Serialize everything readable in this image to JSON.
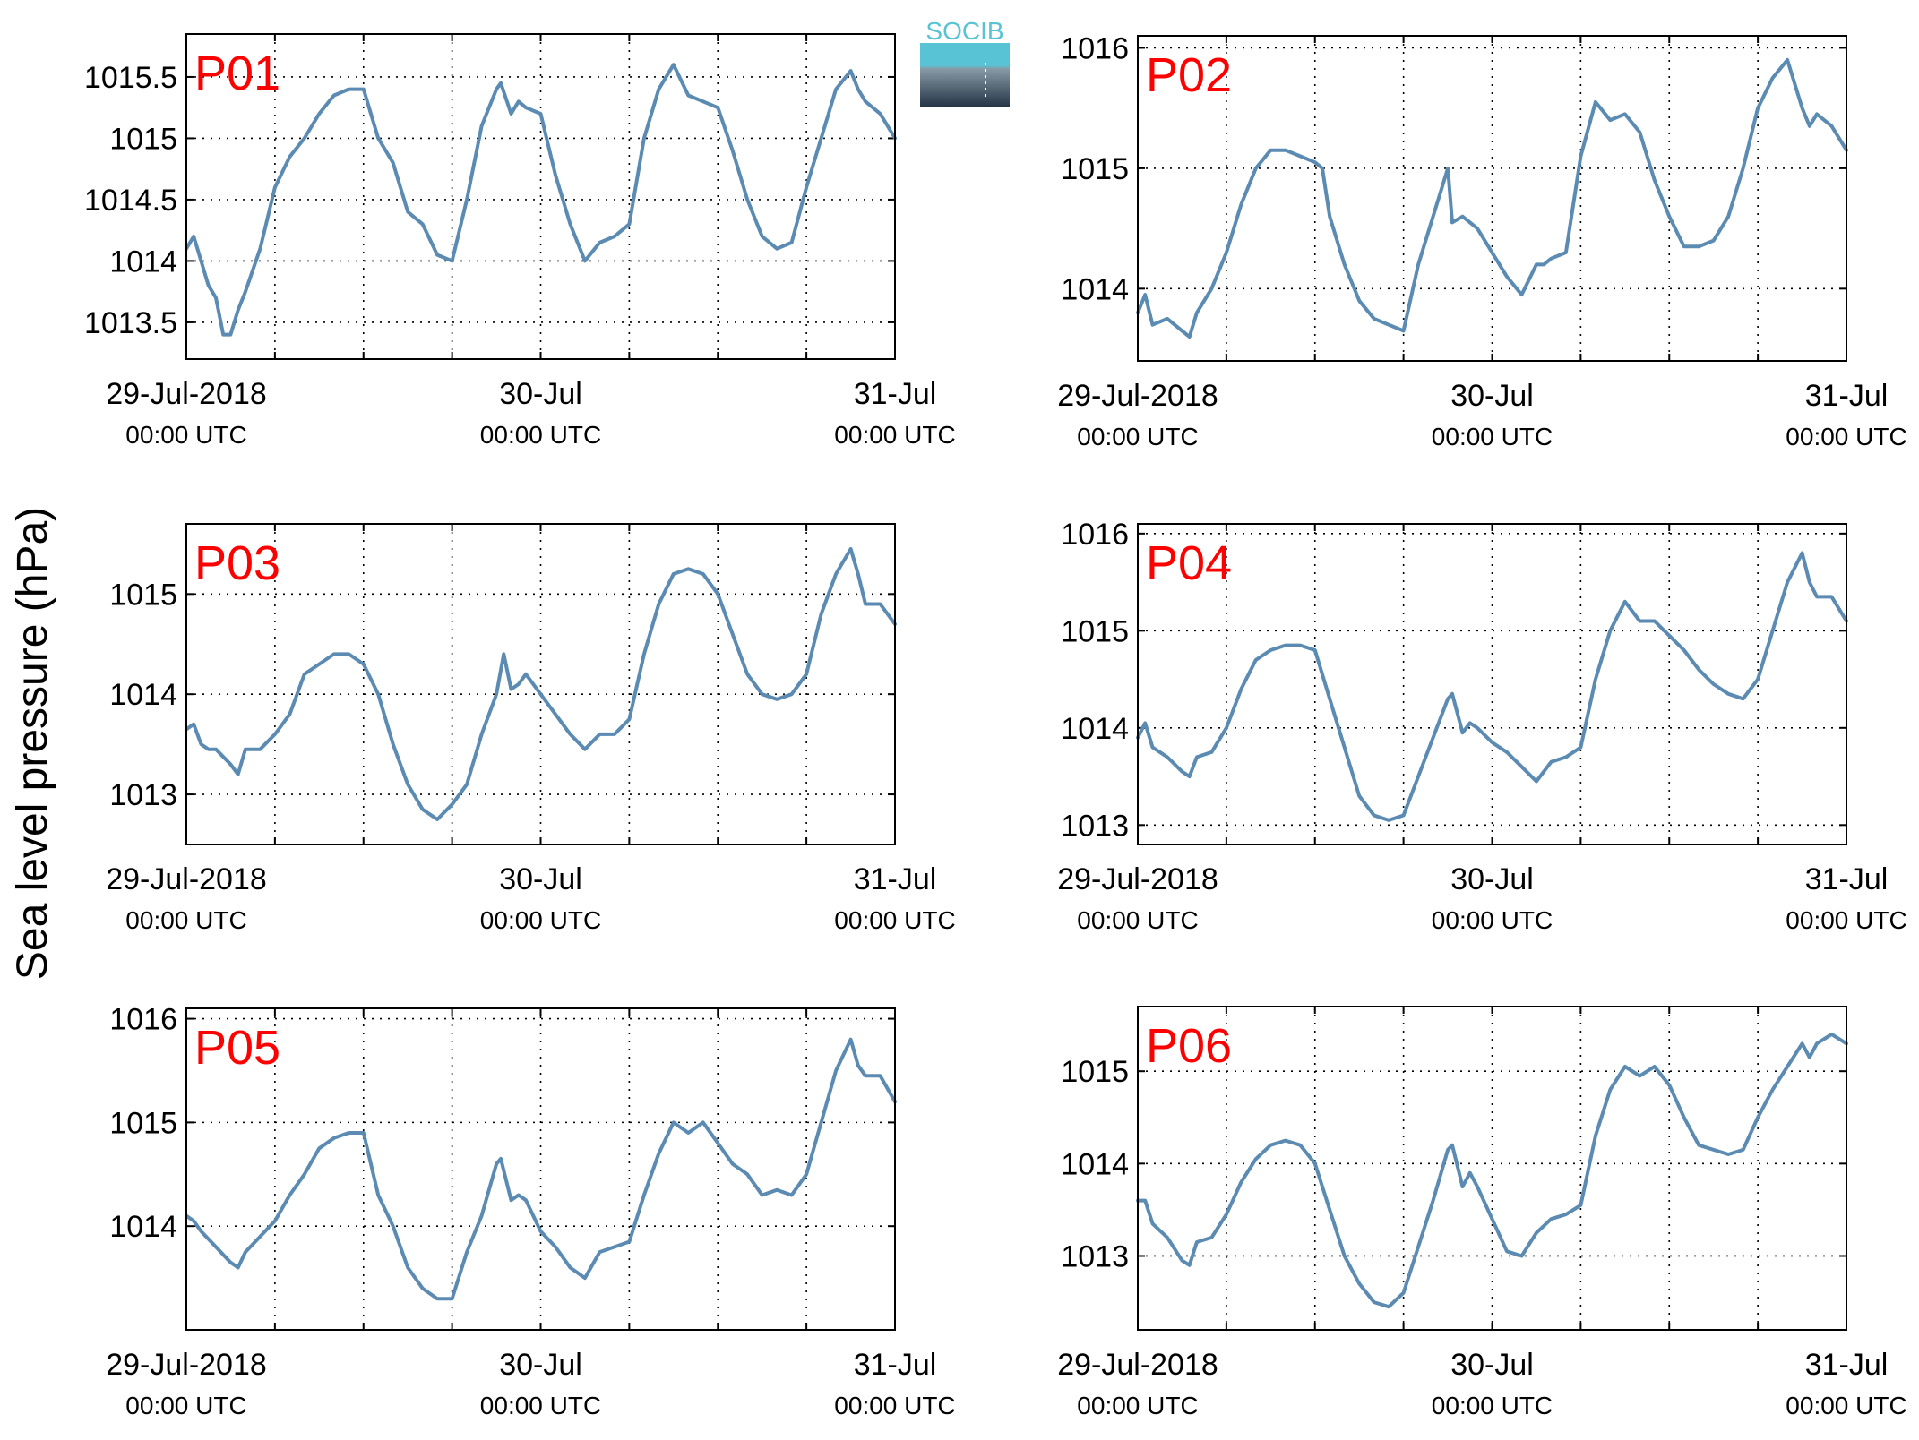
{
  "figure": {
    "ylabel": "Sea level pressure (hPa)",
    "logo_text": "SOCIB"
  },
  "colors": {
    "line": "#5b8bb2",
    "panel_label": "#ff0000",
    "axis": "#000000",
    "grid": "#000000",
    "logo_top": "#59c3d6",
    "logo_bottom": "#223344"
  },
  "chart_data": [
    {
      "type": "line",
      "panel_label": "P01",
      "xlim": [
        0,
        48
      ],
      "ylim": [
        1013.2,
        1015.85
      ],
      "yticks": [
        1013.5,
        1014,
        1014.5,
        1015,
        1015.5
      ],
      "yticklabels": [
        "1013.5",
        "1014",
        "1014.5",
        "1015",
        "1015.5"
      ],
      "xticks": [
        0,
        24,
        48
      ],
      "xticklabels": [
        [
          "29-Jul-2018",
          "00:00 UTC"
        ],
        [
          "30-Jul",
          "00:00 UTC"
        ],
        [
          "31-Jul",
          "00:00 UTC"
        ]
      ],
      "xgrid": [
        6,
        12,
        18,
        24,
        30,
        36,
        42
      ],
      "grid": true,
      "x": [
        0,
        0.5,
        1,
        1.5,
        2,
        2.5,
        3,
        3.5,
        4,
        5,
        6,
        7,
        8,
        9,
        10,
        11,
        12,
        12.5,
        13,
        14,
        15,
        16,
        17,
        18,
        19,
        20,
        21,
        21.3,
        22,
        22.5,
        23,
        24,
        25,
        26,
        27,
        28,
        29,
        30,
        31,
        32,
        33,
        34,
        35,
        36,
        37,
        38,
        39,
        40,
        41,
        42,
        43,
        44,
        45,
        45.5,
        46,
        47,
        48
      ],
      "y": [
        1014.1,
        1014.2,
        1014.0,
        1013.8,
        1013.7,
        1013.4,
        1013.4,
        1013.6,
        1013.75,
        1014.1,
        1014.6,
        1014.85,
        1015.0,
        1015.2,
        1015.35,
        1015.4,
        1015.4,
        1015.2,
        1015.0,
        1014.8,
        1014.4,
        1014.3,
        1014.05,
        1014.0,
        1014.5,
        1015.1,
        1015.4,
        1015.45,
        1015.2,
        1015.3,
        1015.25,
        1015.2,
        1014.7,
        1014.3,
        1014.0,
        1014.15,
        1014.2,
        1014.3,
        1015.0,
        1015.4,
        1015.6,
        1015.35,
        1015.3,
        1015.25,
        1014.9,
        1014.5,
        1014.2,
        1014.1,
        1014.15,
        1014.6,
        1015.0,
        1015.4,
        1015.55,
        1015.4,
        1015.3,
        1015.2,
        1015.0
      ]
    },
    {
      "type": "line",
      "panel_label": "P02",
      "xlim": [
        0,
        48
      ],
      "ylim": [
        1013.4,
        1016.1
      ],
      "yticks": [
        1014,
        1015,
        1016
      ],
      "yticklabels": [
        "1014",
        "1015",
        "1016"
      ],
      "xticks": [
        0,
        24,
        48
      ],
      "xticklabels": [
        [
          "29-Jul-2018",
          "00:00 UTC"
        ],
        [
          "30-Jul",
          "00:00 UTC"
        ],
        [
          "31-Jul",
          "00:00 UTC"
        ]
      ],
      "xgrid": [
        6,
        12,
        18,
        24,
        30,
        36,
        42
      ],
      "grid": true,
      "x": [
        0,
        0.5,
        1,
        2,
        3,
        3.5,
        4,
        5,
        6,
        7,
        8,
        9,
        10,
        11,
        12,
        12.5,
        13,
        14,
        15,
        16,
        17,
        18,
        19,
        20,
        21,
        21.3,
        22,
        23,
        24,
        25,
        26,
        27,
        27.5,
        28,
        29,
        30,
        31,
        32,
        33,
        34,
        35,
        36,
        37,
        38,
        39,
        40,
        41,
        42,
        43,
        44,
        45,
        45.5,
        46,
        47,
        48
      ],
      "y": [
        1013.8,
        1013.95,
        1013.7,
        1013.75,
        1013.65,
        1013.6,
        1013.8,
        1014.0,
        1014.3,
        1014.7,
        1015.0,
        1015.15,
        1015.15,
        1015.1,
        1015.05,
        1015.0,
        1014.6,
        1014.2,
        1013.9,
        1013.75,
        1013.7,
        1013.65,
        1014.2,
        1014.6,
        1015.0,
        1014.55,
        1014.6,
        1014.5,
        1014.3,
        1014.1,
        1013.95,
        1014.2,
        1014.2,
        1014.25,
        1014.3,
        1015.1,
        1015.55,
        1015.4,
        1015.45,
        1015.3,
        1014.9,
        1014.6,
        1014.35,
        1014.35,
        1014.4,
        1014.6,
        1015.0,
        1015.5,
        1015.75,
        1015.9,
        1015.5,
        1015.35,
        1015.45,
        1015.35,
        1015.15
      ]
    },
    {
      "type": "line",
      "panel_label": "P03",
      "xlim": [
        0,
        48
      ],
      "ylim": [
        1012.5,
        1015.7
      ],
      "yticks": [
        1013,
        1014,
        1015
      ],
      "yticklabels": [
        "1013",
        "1014",
        "1015"
      ],
      "xticks": [
        0,
        24,
        48
      ],
      "xticklabels": [
        [
          "29-Jul-2018",
          "00:00 UTC"
        ],
        [
          "30-Jul",
          "00:00 UTC"
        ],
        [
          "31-Jul",
          "00:00 UTC"
        ]
      ],
      "xgrid": [
        6,
        12,
        18,
        24,
        30,
        36,
        42
      ],
      "grid": true,
      "x": [
        0,
        0.5,
        1,
        1.5,
        2,
        3,
        3.5,
        4,
        5,
        6,
        7,
        8,
        9,
        10,
        11,
        12,
        13,
        14,
        15,
        16,
        17,
        18,
        19,
        20,
        21,
        21.5,
        22,
        22.5,
        23,
        24,
        25,
        26,
        27,
        28,
        29,
        30,
        31,
        32,
        33,
        34,
        35,
        36,
        37,
        38,
        39,
        40,
        41,
        42,
        43,
        44,
        45,
        45.5,
        46,
        47,
        48
      ],
      "y": [
        1013.65,
        1013.7,
        1013.5,
        1013.45,
        1013.45,
        1013.3,
        1013.2,
        1013.45,
        1013.45,
        1013.6,
        1013.8,
        1014.2,
        1014.3,
        1014.4,
        1014.4,
        1014.3,
        1014.0,
        1013.5,
        1013.1,
        1012.85,
        1012.75,
        1012.9,
        1013.1,
        1013.6,
        1014.0,
        1014.4,
        1014.05,
        1014.1,
        1014.2,
        1014.0,
        1013.8,
        1013.6,
        1013.45,
        1013.6,
        1013.6,
        1013.75,
        1014.4,
        1014.9,
        1015.2,
        1015.25,
        1015.2,
        1015.0,
        1014.6,
        1014.2,
        1014.0,
        1013.95,
        1014.0,
        1014.2,
        1014.8,
        1015.2,
        1015.45,
        1015.2,
        1014.9,
        1014.9,
        1014.7
      ]
    },
    {
      "type": "line",
      "panel_label": "P04",
      "xlim": [
        0,
        48
      ],
      "ylim": [
        1012.8,
        1016.1
      ],
      "yticks": [
        1013,
        1014,
        1015,
        1016
      ],
      "yticklabels": [
        "1013",
        "1014",
        "1015",
        "1016"
      ],
      "xticks": [
        0,
        24,
        48
      ],
      "xticklabels": [
        [
          "29-Jul-2018",
          "00:00 UTC"
        ],
        [
          "30-Jul",
          "00:00 UTC"
        ],
        [
          "31-Jul",
          "00:00 UTC"
        ]
      ],
      "xgrid": [
        6,
        12,
        18,
        24,
        30,
        36,
        42
      ],
      "grid": true,
      "x": [
        0,
        0.5,
        1,
        2,
        3,
        3.5,
        4,
        5,
        6,
        7,
        8,
        9,
        10,
        11,
        12,
        13,
        14,
        15,
        16,
        17,
        18,
        19,
        20,
        21,
        21.3,
        22,
        22.5,
        23,
        24,
        25,
        26,
        27,
        28,
        29,
        30,
        31,
        32,
        33,
        34,
        35,
        36,
        37,
        38,
        39,
        40,
        41,
        42,
        43,
        44,
        45,
        45.5,
        46,
        47,
        48
      ],
      "y": [
        1013.9,
        1014.05,
        1013.8,
        1013.7,
        1013.55,
        1013.5,
        1013.7,
        1013.75,
        1014.0,
        1014.4,
        1014.7,
        1014.8,
        1014.85,
        1014.85,
        1014.8,
        1014.3,
        1013.8,
        1013.3,
        1013.1,
        1013.05,
        1013.1,
        1013.5,
        1013.9,
        1014.3,
        1014.35,
        1013.95,
        1014.05,
        1014.0,
        1013.85,
        1013.75,
        1013.6,
        1013.45,
        1013.65,
        1013.7,
        1013.8,
        1014.5,
        1015.0,
        1015.3,
        1015.1,
        1015.1,
        1014.95,
        1014.8,
        1014.6,
        1014.45,
        1014.35,
        1014.3,
        1014.5,
        1015.0,
        1015.5,
        1015.8,
        1015.5,
        1015.35,
        1015.35,
        1015.1
      ]
    },
    {
      "type": "line",
      "panel_label": "P05",
      "xlim": [
        0,
        48
      ],
      "ylim": [
        1013.0,
        1016.1
      ],
      "yticks": [
        1014,
        1015,
        1016
      ],
      "yticklabels": [
        "1014",
        "1015",
        "1016"
      ],
      "xticks": [
        0,
        24,
        48
      ],
      "xticklabels": [
        [
          "29-Jul-2018",
          "00:00 UTC"
        ],
        [
          "30-Jul",
          "00:00 UTC"
        ],
        [
          "31-Jul",
          "00:00 UTC"
        ]
      ],
      "xgrid": [
        6,
        12,
        18,
        24,
        30,
        36,
        42
      ],
      "grid": true,
      "x": [
        0,
        0.5,
        1,
        2,
        3,
        3.5,
        4,
        5,
        6,
        7,
        8,
        9,
        10,
        11,
        12,
        13,
        14,
        15,
        16,
        17,
        18,
        19,
        20,
        21,
        21.3,
        22,
        22.5,
        23,
        24,
        25,
        26,
        27,
        28,
        29,
        30,
        31,
        32,
        33,
        34,
        35,
        36,
        37,
        38,
        39,
        40,
        41,
        42,
        43,
        44,
        45,
        45.5,
        46,
        47,
        48
      ],
      "y": [
        1014.1,
        1014.05,
        1013.95,
        1013.8,
        1013.65,
        1013.6,
        1013.75,
        1013.9,
        1014.05,
        1014.3,
        1014.5,
        1014.75,
        1014.85,
        1014.9,
        1014.9,
        1014.3,
        1014.0,
        1013.6,
        1013.4,
        1013.3,
        1013.3,
        1013.75,
        1014.1,
        1014.6,
        1014.65,
        1014.25,
        1014.3,
        1014.25,
        1013.95,
        1013.8,
        1013.6,
        1013.5,
        1013.75,
        1013.8,
        1013.85,
        1014.3,
        1014.7,
        1015.0,
        1014.9,
        1015.0,
        1014.8,
        1014.6,
        1014.5,
        1014.3,
        1014.35,
        1014.3,
        1014.5,
        1015.0,
        1015.5,
        1015.8,
        1015.55,
        1015.45,
        1015.45,
        1015.2
      ]
    },
    {
      "type": "line",
      "panel_label": "P06",
      "xlim": [
        0,
        48
      ],
      "ylim": [
        1012.2,
        1015.7
      ],
      "yticks": [
        1013,
        1014,
        1015
      ],
      "yticklabels": [
        "1013",
        "1014",
        "1015"
      ],
      "xticks": [
        0,
        24,
        48
      ],
      "xticklabels": [
        [
          "29-Jul-2018",
          "00:00 UTC"
        ],
        [
          "30-Jul",
          "00:00 UTC"
        ],
        [
          "31-Jul",
          "00:00 UTC"
        ]
      ],
      "xgrid": [
        6,
        12,
        18,
        24,
        30,
        36,
        42
      ],
      "grid": true,
      "x": [
        0,
        0.5,
        1,
        2,
        3,
        3.5,
        4,
        5,
        6,
        7,
        8,
        9,
        10,
        11,
        12,
        13,
        14,
        15,
        16,
        17,
        18,
        19,
        20,
        21,
        21.3,
        22,
        22.5,
        23,
        24,
        25,
        26,
        27,
        28,
        29,
        30,
        31,
        32,
        33,
        34,
        35,
        36,
        37,
        38,
        39,
        40,
        41,
        42,
        43,
        44,
        45,
        45.5,
        46,
        47,
        48
      ],
      "y": [
        1013.6,
        1013.6,
        1013.35,
        1013.2,
        1012.95,
        1012.9,
        1013.15,
        1013.2,
        1013.45,
        1013.8,
        1014.05,
        1014.2,
        1014.25,
        1014.2,
        1014.0,
        1013.5,
        1013.0,
        1012.7,
        1012.5,
        1012.45,
        1012.6,
        1013.1,
        1013.6,
        1014.15,
        1014.2,
        1013.75,
        1013.9,
        1013.75,
        1013.4,
        1013.05,
        1013.0,
        1013.25,
        1013.4,
        1013.45,
        1013.55,
        1014.3,
        1014.8,
        1015.05,
        1014.95,
        1015.05,
        1014.85,
        1014.5,
        1014.2,
        1014.15,
        1014.1,
        1014.15,
        1014.5,
        1014.8,
        1015.05,
        1015.3,
        1015.15,
        1015.3,
        1015.4,
        1015.3
      ]
    }
  ]
}
